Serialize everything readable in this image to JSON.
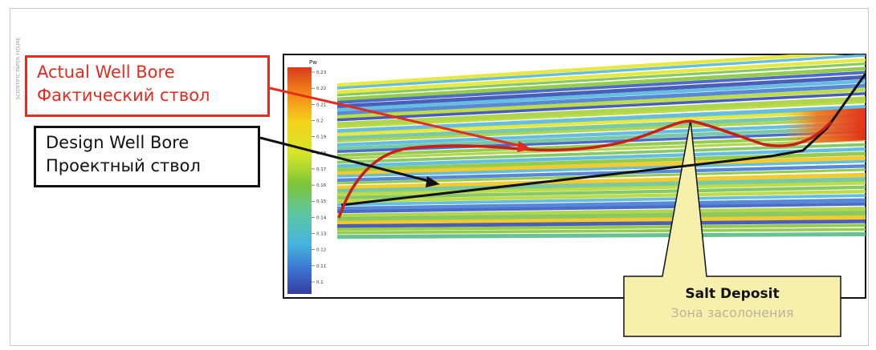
{
  "side_caption": "SCIENTIFIC PAPER FIGURE",
  "actual_well": {
    "line1": "Actual Well Bore",
    "line2": "Фактический ствол",
    "color": "#e52b1e"
  },
  "design_well": {
    "line1": "Design Well Bore",
    "line2": "Проектный ствол",
    "color": "#111111"
  },
  "salt": {
    "line1": "Salt Deposit",
    "line2": "Зона засолонения",
    "fill": "#f7f0ad"
  },
  "colorbar": {
    "header": "Рw",
    "ticks": [
      "0.23",
      "0.22",
      "0.21",
      "0.2",
      "0.19",
      "0.18",
      "0.17",
      "0.16",
      "0.15",
      "0.14",
      "0.13",
      "0.12",
      "0.11",
      "0.1"
    ]
  }
}
